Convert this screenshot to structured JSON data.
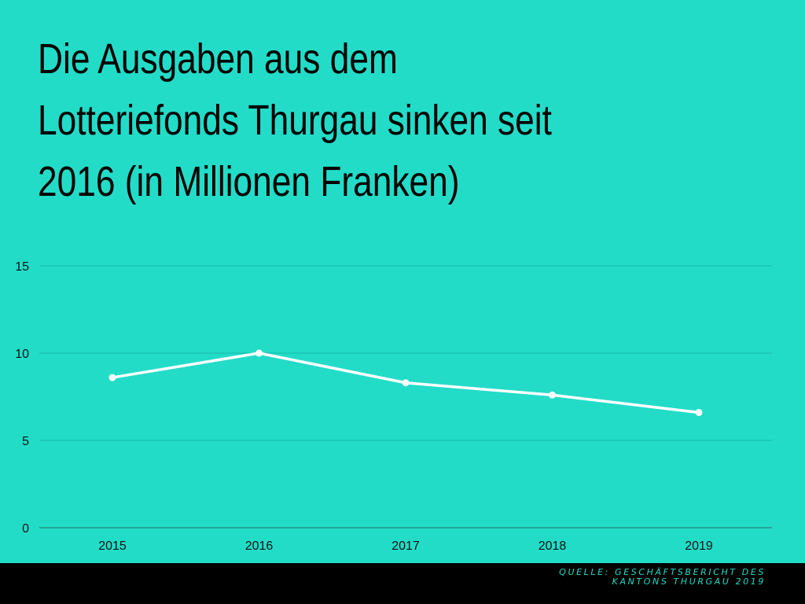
{
  "title": "Die Ausgaben aus dem\nLotteriefonds Thurgau sinken seit\n2016 (in Millionen Franken)",
  "source": "Quelle: Geschäftsbericht des Kantons Thurgau 2019",
  "colors": {
    "background": "#22DCC8",
    "line": "#FFFFFF",
    "gridline": "#17B8A8",
    "axis": "#2A6F66",
    "footer": "#000000"
  },
  "chart_data": {
    "type": "line",
    "title": "Die Ausgaben aus dem Lotteriefonds Thurgau sinken seit 2016 (in Millionen Franken)",
    "xlabel": "",
    "ylabel": "",
    "categories": [
      "2015",
      "2016",
      "2017",
      "2018",
      "2019"
    ],
    "values": [
      8.6,
      10.0,
      8.3,
      7.6,
      6.6
    ],
    "ylim": [
      0,
      15
    ],
    "yticks": [
      0,
      5,
      10,
      15
    ],
    "grid": true,
    "legend": "none"
  }
}
